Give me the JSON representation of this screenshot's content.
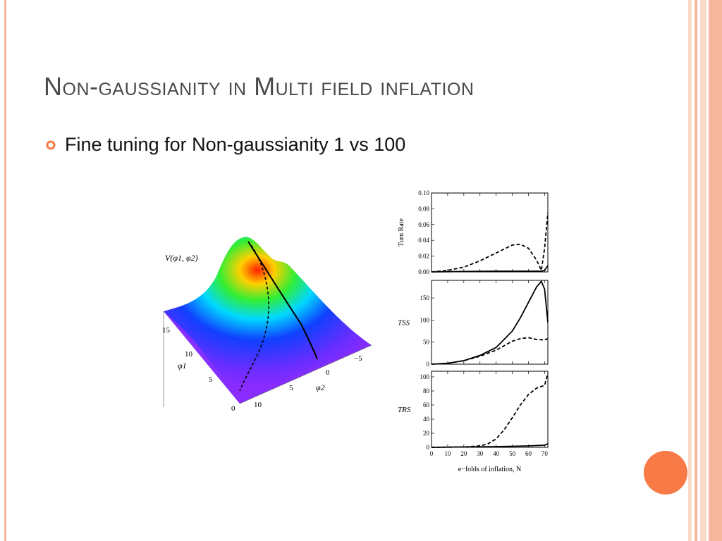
{
  "slide": {
    "title": "Non-gaussianity in Multi field inflation",
    "bullet": "Fine tuning for Non-gaussianity 1 vs 100"
  },
  "colors": {
    "accent": "#f77a47",
    "border": "#f6b79c",
    "title": "#4a4a4a"
  },
  "surface_plot": {
    "label": "V(φ1, φ2)",
    "phi1_label": "φ1",
    "phi2_label": "φ2",
    "phi1_ticks": [
      "15",
      "10",
      "5",
      "0"
    ],
    "phi2_ticks": [
      "10",
      "5",
      "0",
      "−5"
    ]
  },
  "chart_data": [
    {
      "type": "line",
      "ylabel": "Turn Rate",
      "xlim": [
        0,
        72
      ],
      "ylim": [
        0,
        0.1
      ],
      "yticks": [
        "0.00",
        "0.02",
        "0.04",
        "0.06",
        "0.08",
        "0.10"
      ],
      "series": [
        {
          "style": "solid",
          "x": [
            0,
            20,
            40,
            60,
            68,
            70,
            72
          ],
          "y": [
            0.0,
            0.0005,
            0.001,
            0.001,
            0.001,
            0.002,
            0.008
          ]
        },
        {
          "style": "dashed",
          "x": [
            0,
            10,
            20,
            30,
            40,
            50,
            55,
            60,
            65,
            68,
            70,
            72
          ],
          "y": [
            0.0,
            0.002,
            0.006,
            0.014,
            0.024,
            0.034,
            0.035,
            0.03,
            0.015,
            0.002,
            0.03,
            0.075
          ]
        }
      ]
    },
    {
      "type": "line",
      "ylabel": "TSS",
      "xlim": [
        0,
        72
      ],
      "ylim": [
        0,
        190
      ],
      "yticks": [
        "0",
        "50",
        "100",
        "150"
      ],
      "series": [
        {
          "style": "solid",
          "x": [
            0,
            10,
            20,
            30,
            40,
            50,
            55,
            60,
            65,
            68,
            70,
            72
          ],
          "y": [
            0,
            2,
            8,
            20,
            38,
            75,
            105,
            140,
            175,
            188,
            170,
            95
          ]
        },
        {
          "style": "dashed",
          "x": [
            0,
            10,
            20,
            30,
            40,
            50,
            55,
            60,
            65,
            70,
            72
          ],
          "y": [
            0,
            2,
            8,
            18,
            32,
            52,
            58,
            60,
            56,
            55,
            58
          ]
        }
      ]
    },
    {
      "type": "line",
      "ylabel": "TRS",
      "xlabel": "e−folds of inflation, N",
      "xlim": [
        0,
        72
      ],
      "ylim": [
        0,
        108
      ],
      "xticks": [
        "0",
        "10",
        "20",
        "30",
        "40",
        "50",
        "60",
        "70"
      ],
      "yticks": [
        "0",
        "20",
        "40",
        "60",
        "80",
        "100"
      ],
      "series": [
        {
          "style": "solid",
          "x": [
            0,
            20,
            40,
            60,
            70,
            72
          ],
          "y": [
            0,
            0.5,
            1,
            2,
            3,
            5
          ]
        },
        {
          "style": "dashed",
          "x": [
            0,
            20,
            30,
            35,
            40,
            45,
            50,
            55,
            60,
            65,
            70,
            72
          ],
          "y": [
            0,
            0.5,
            2,
            5,
            12,
            25,
            42,
            60,
            75,
            84,
            88,
            105
          ]
        }
      ]
    }
  ]
}
